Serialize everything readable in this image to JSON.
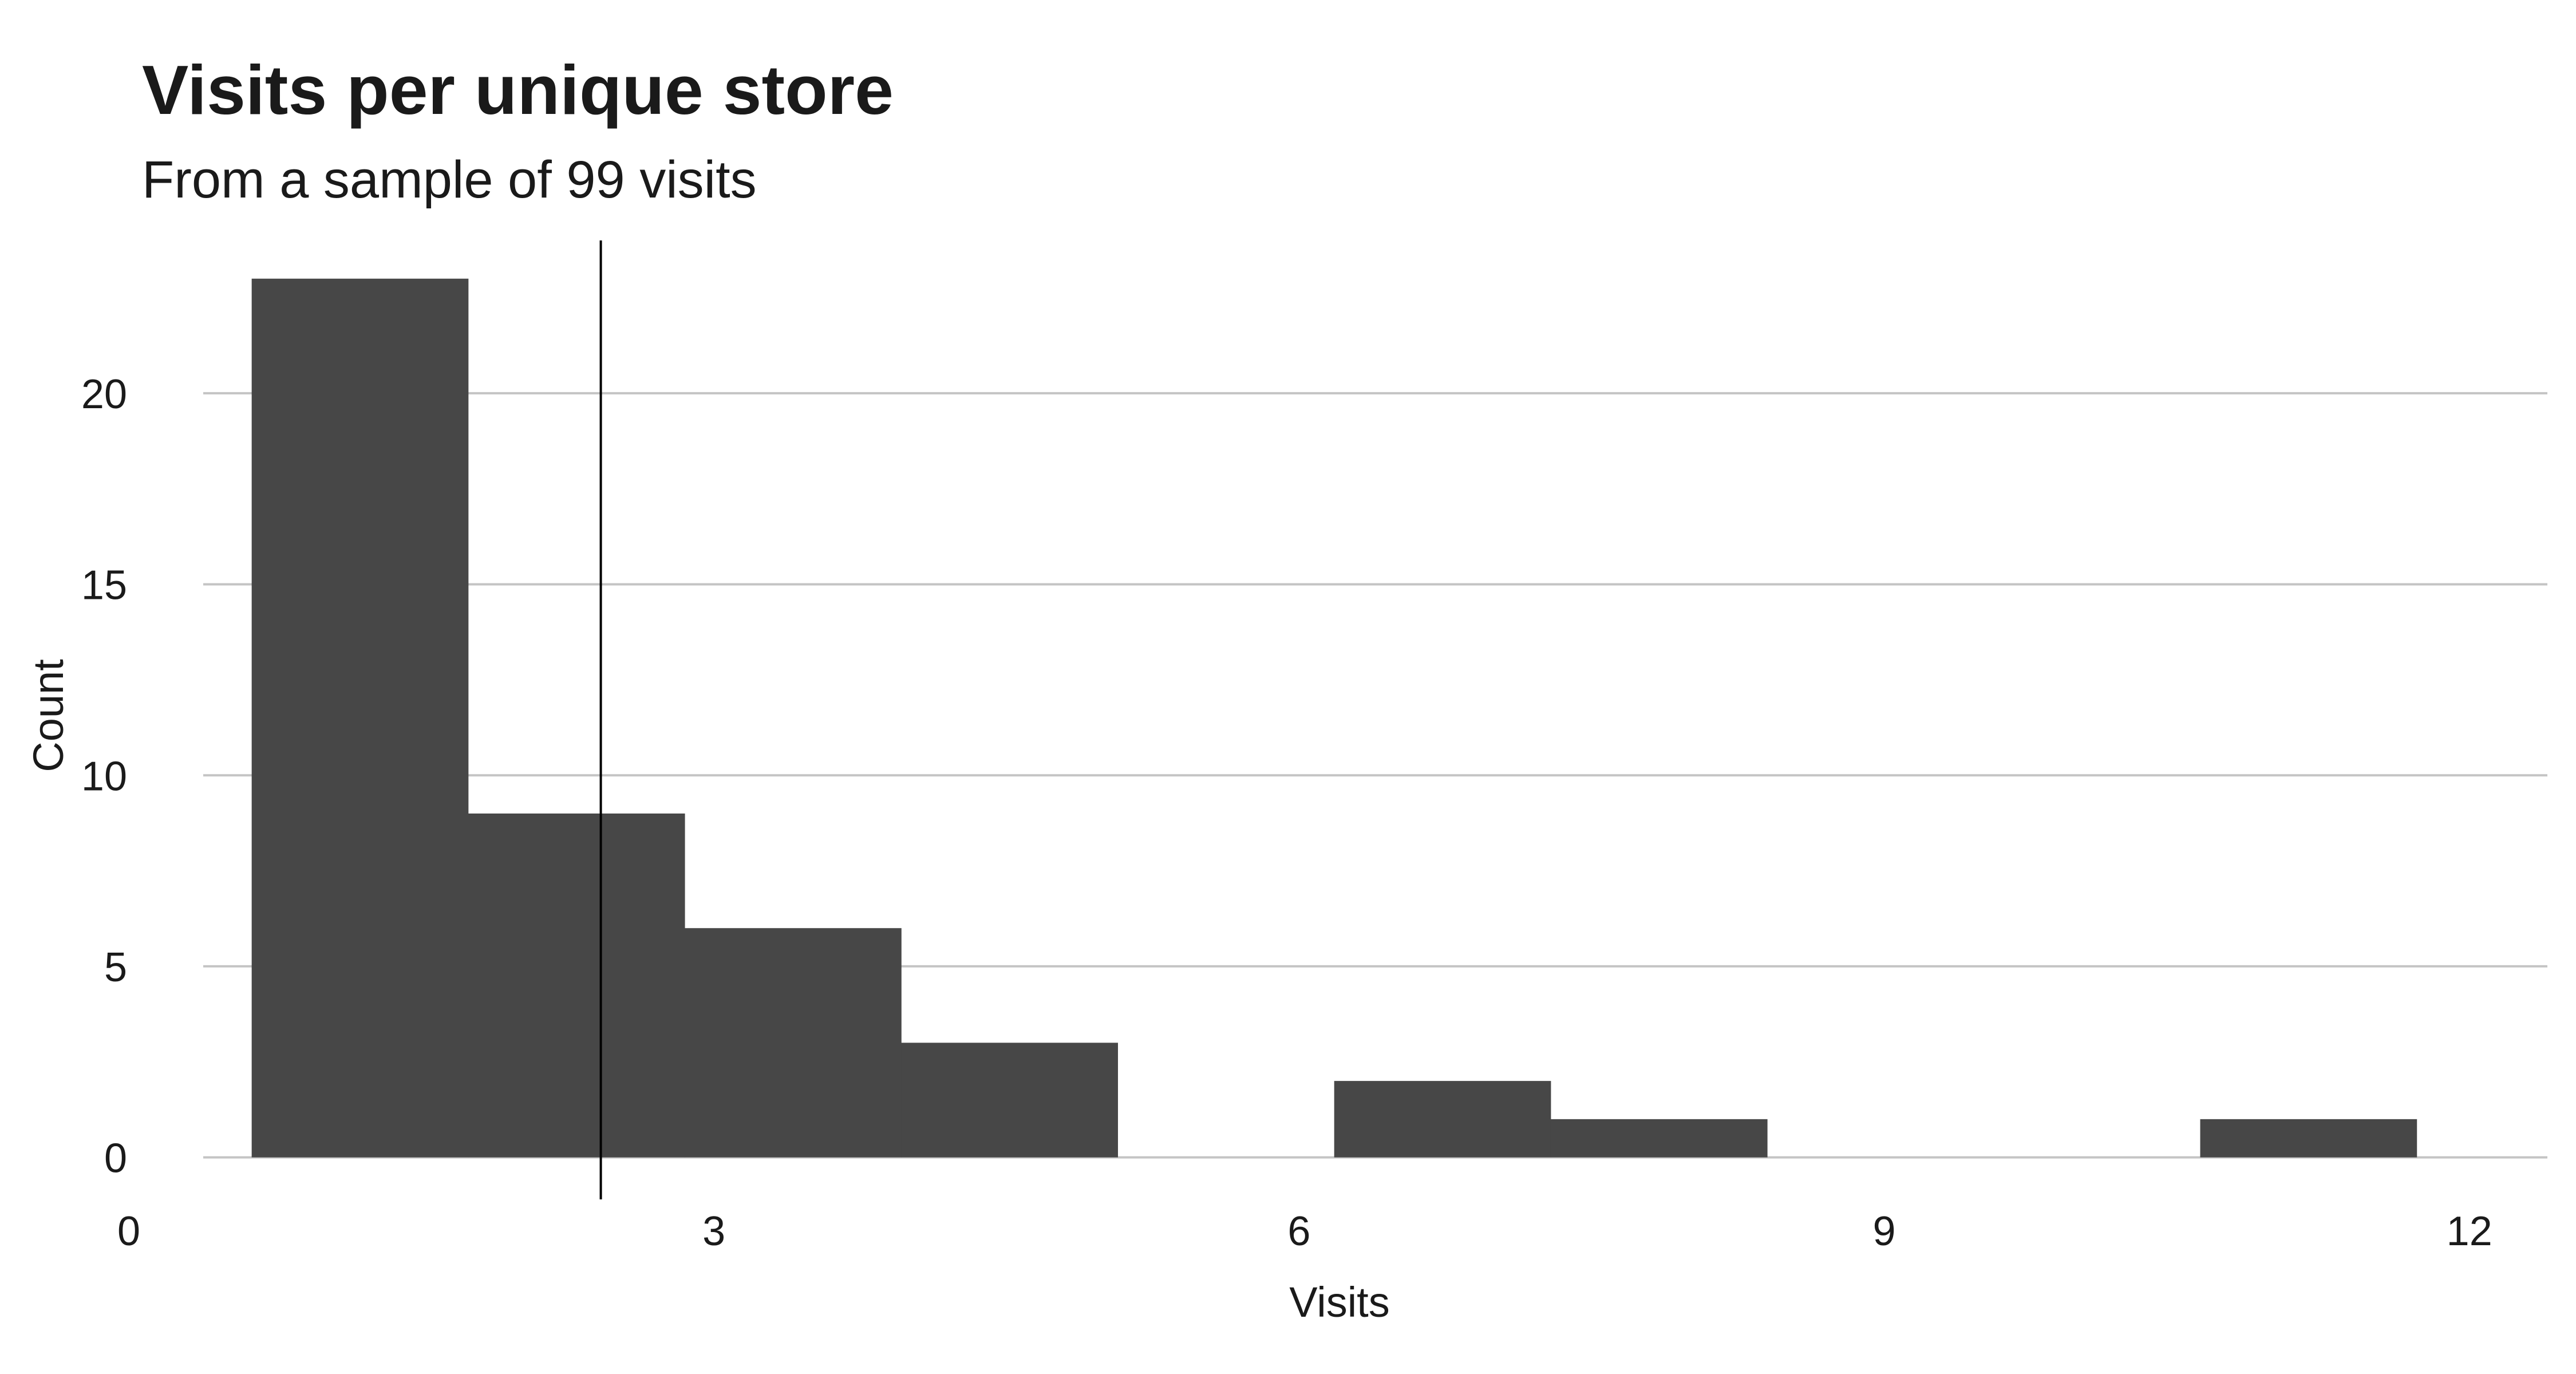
{
  "chart_data": {
    "type": "bar",
    "title": "Visits per unique store",
    "subtitle": "From a sample of 99 visits",
    "xlabel": "Visits",
    "ylabel": "Count",
    "xlim": [
      0,
      12.4
    ],
    "ylim": [
      -1.1,
      24
    ],
    "x_ticks": [
      0,
      3,
      6,
      9,
      12
    ],
    "y_ticks": [
      0,
      5,
      10,
      15,
      20
    ],
    "bins": [
      {
        "x0": 0.63,
        "x1": 1.74,
        "count": 23
      },
      {
        "x0": 1.74,
        "x1": 2.85,
        "count": 9
      },
      {
        "x0": 2.85,
        "x1": 3.96,
        "count": 6
      },
      {
        "x0": 3.96,
        "x1": 5.07,
        "count": 3
      },
      {
        "x0": 5.07,
        "x1": 6.18,
        "count": 0
      },
      {
        "x0": 6.18,
        "x1": 7.29,
        "count": 2
      },
      {
        "x0": 7.29,
        "x1": 8.4,
        "count": 1
      },
      {
        "x0": 8.4,
        "x1": 9.51,
        "count": 0
      },
      {
        "x0": 9.51,
        "x1": 10.62,
        "count": 0
      },
      {
        "x0": 10.62,
        "x1": 11.73,
        "count": 1
      }
    ],
    "reference_line_x": 2.42,
    "grid": "horizontal",
    "colors": {
      "bar": "#474747",
      "grid": "#c4c4c4",
      "reference_line": "#000000"
    }
  }
}
